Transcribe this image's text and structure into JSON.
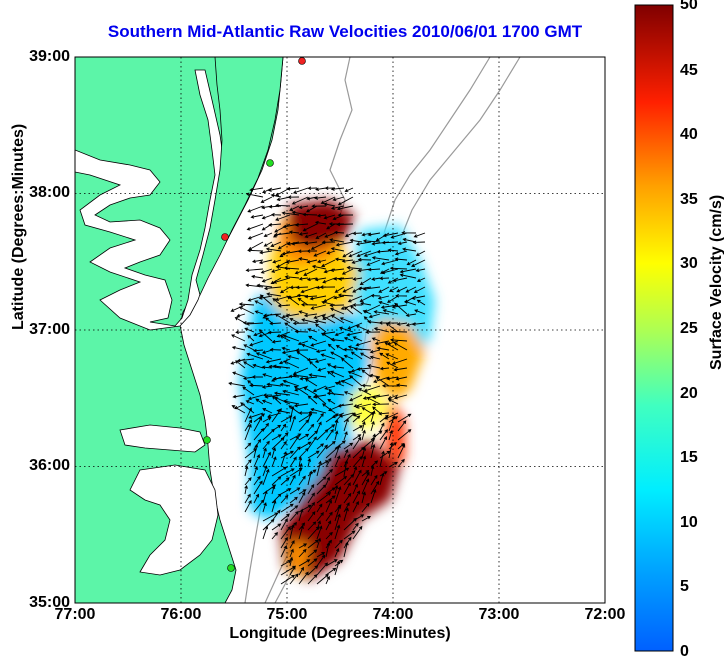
{
  "title": "Southern Mid-Atlantic Raw Velocities 2010/06/01 1700 GMT",
  "x_axis": {
    "label": "Longitude (Degrees:Minutes)",
    "ticks": [
      "77:00",
      "76:00",
      "75:00",
      "74:00",
      "73:00",
      "72:00"
    ]
  },
  "y_axis": {
    "label": "Latitude (Degrees:Minutes)",
    "ticks": [
      "39:00",
      "38:00",
      "37:00",
      "36:00",
      "35:00"
    ]
  },
  "colorbar": {
    "label": "Surface Velocity (cm/s)",
    "ticks": [
      "50",
      "45",
      "40",
      "35",
      "30",
      "25",
      "20",
      "15",
      "10",
      "5",
      "0"
    ],
    "range": [
      0,
      50
    ]
  },
  "colors": {
    "land": "#5cf5a8",
    "title": "#0000ee",
    "coast_outline": "#000000",
    "bathymetry": "#9a9a9a",
    "station_green": "#22dd22",
    "station_red": "#ee2222"
  },
  "map": {
    "lon_range": [
      -77,
      -72
    ],
    "lat_range": [
      35,
      39
    ],
    "grid": true
  }
}
